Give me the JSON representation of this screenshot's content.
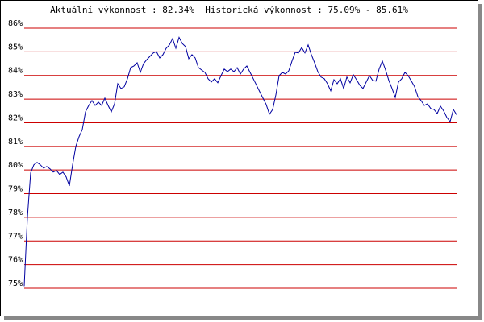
{
  "chart_data": {
    "type": "line",
    "title": "Aktuální výkonnost : 82.34%  Historická výkonnost : 75.09% - 85.61%",
    "color": "#0000a0",
    "grid_color": "#cc0000",
    "grid": true,
    "ylim": [
      75,
      86
    ],
    "yticks": [
      {
        "value": 75,
        "label": "75%"
      },
      {
        "value": 76,
        "label": "76%"
      },
      {
        "value": 77,
        "label": "77%"
      },
      {
        "value": 78,
        "label": "78%"
      },
      {
        "value": 79,
        "label": "79%"
      },
      {
        "value": 80,
        "label": "80%"
      },
      {
        "value": 81,
        "label": "81%"
      },
      {
        "value": 82,
        "label": "82%"
      },
      {
        "value": 83,
        "label": "83%"
      },
      {
        "value": 84,
        "label": "84%"
      },
      {
        "value": 85,
        "label": "85%"
      },
      {
        "value": 86,
        "label": "86%"
      }
    ],
    "values": [
      75.09,
      78.01,
      79.88,
      80.22,
      80.32,
      80.22,
      80.08,
      80.15,
      80.05,
      79.91,
      79.98,
      79.81,
      79.91,
      79.71,
      79.33,
      80.22,
      81.0,
      81.41,
      81.71,
      82.46,
      82.73,
      82.94,
      82.73,
      82.87,
      82.73,
      83.04,
      82.73,
      82.46,
      82.8,
      83.65,
      83.45,
      83.52,
      83.86,
      84.33,
      84.4,
      84.54,
      84.13,
      84.5,
      84.67,
      84.81,
      84.95,
      85.01,
      84.74,
      84.88,
      85.15,
      85.29,
      85.56,
      85.15,
      85.61,
      85.35,
      85.22,
      84.71,
      84.88,
      84.74,
      84.33,
      84.23,
      84.13,
      83.86,
      83.72,
      83.86,
      83.69,
      83.99,
      84.27,
      84.16,
      84.27,
      84.16,
      84.33,
      84.06,
      84.27,
      84.4,
      84.13,
      83.86,
      83.59,
      83.31,
      83.04,
      82.77,
      82.36,
      82.56,
      83.18,
      83.99,
      84.13,
      84.06,
      84.2,
      84.61,
      84.98,
      84.95,
      85.18,
      84.95,
      85.29,
      84.88,
      84.54,
      84.16,
      83.93,
      83.86,
      83.65,
      83.35,
      83.82,
      83.65,
      83.86,
      83.45,
      83.93,
      83.69,
      84.03,
      83.82,
      83.59,
      83.45,
      83.72,
      83.99,
      83.79,
      83.76,
      84.27,
      84.61,
      84.23,
      83.79,
      83.45,
      83.07,
      83.72,
      83.86,
      84.13,
      83.99,
      83.76,
      83.52,
      83.11,
      82.94,
      82.73,
      82.8,
      82.6,
      82.56,
      82.39,
      82.7,
      82.5,
      82.22,
      82.05,
      82.56,
      82.34
    ]
  }
}
